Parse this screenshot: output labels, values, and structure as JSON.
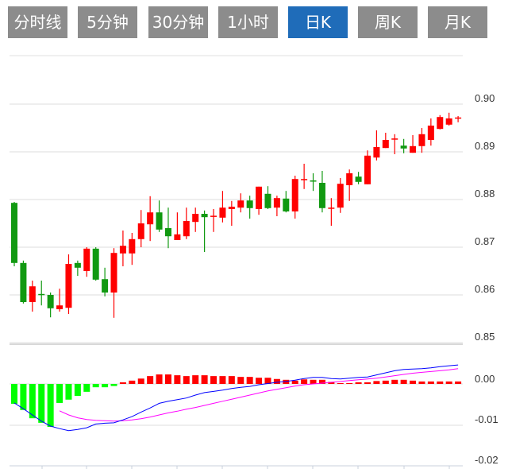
{
  "tabs": [
    {
      "label": "分时线",
      "active": false
    },
    {
      "label": "5分钟",
      "active": false
    },
    {
      "label": "30分钟",
      "active": false
    },
    {
      "label": "1小时",
      "active": false
    },
    {
      "label": "日K",
      "active": true
    },
    {
      "label": "周K",
      "active": false
    },
    {
      "label": "月K",
      "active": false
    }
  ],
  "colors": {
    "up": "#ff0000",
    "down": "#119911",
    "macd_neg": "#00ff00",
    "dif": "#0000ff",
    "dea": "#ff00ff",
    "active_tab": "#1f6cb9",
    "tab": "#8c8c8c"
  },
  "chart_data": [
    {
      "type": "candlestick",
      "ylim": [
        0.85,
        0.91
      ],
      "y_ticks": [
        "0.90",
        "0.89",
        "0.88",
        "0.87",
        "0.86",
        "0.85"
      ],
      "grid": true,
      "ohlc": [
        [
          0.8793,
          0.8795,
          0.866,
          0.8667
        ],
        [
          0.8667,
          0.8672,
          0.8582,
          0.8585
        ],
        [
          0.8585,
          0.863,
          0.8565,
          0.8618
        ],
        [
          0.8602,
          0.863,
          0.8578,
          0.86
        ],
        [
          0.86,
          0.8605,
          0.8553,
          0.8572
        ],
        [
          0.857,
          0.8613,
          0.8565,
          0.8578
        ],
        [
          0.8573,
          0.8685,
          0.856,
          0.8665
        ],
        [
          0.8667,
          0.8672,
          0.864,
          0.8657
        ],
        [
          0.865,
          0.87,
          0.8638,
          0.8697
        ],
        [
          0.8697,
          0.87,
          0.863,
          0.8632
        ],
        [
          0.8633,
          0.8657,
          0.8597,
          0.8605
        ],
        [
          0.8605,
          0.8698,
          0.8552,
          0.8688
        ],
        [
          0.8687,
          0.8735,
          0.866,
          0.8703
        ],
        [
          0.8687,
          0.873,
          0.8663,
          0.8717
        ],
        [
          0.8717,
          0.8778,
          0.87,
          0.875
        ],
        [
          0.8748,
          0.8807,
          0.8713,
          0.8773
        ],
        [
          0.8773,
          0.8798,
          0.8732,
          0.8737
        ],
        [
          0.874,
          0.8783,
          0.8698,
          0.8723
        ],
        [
          0.8715,
          0.8773,
          0.8715,
          0.8727
        ],
        [
          0.8723,
          0.8783,
          0.8717,
          0.8755
        ],
        [
          0.8753,
          0.8783,
          0.8732,
          0.877
        ],
        [
          0.877,
          0.8777,
          0.869,
          0.8763
        ],
        [
          0.8764,
          0.878,
          0.8732,
          0.8766
        ],
        [
          0.8762,
          0.8818,
          0.8752,
          0.8783
        ],
        [
          0.878,
          0.8797,
          0.8745,
          0.8785
        ],
        [
          0.8783,
          0.8813,
          0.8773,
          0.8798
        ],
        [
          0.8798,
          0.8808,
          0.876,
          0.8782
        ],
        [
          0.878,
          0.8827,
          0.8768,
          0.8827
        ],
        [
          0.8812,
          0.8828,
          0.878,
          0.8782
        ],
        [
          0.8783,
          0.8808,
          0.8765,
          0.8803
        ],
        [
          0.8802,
          0.8818,
          0.8773,
          0.8775
        ],
        [
          0.8775,
          0.885,
          0.876,
          0.8843
        ],
        [
          0.8842,
          0.8875,
          0.8822,
          0.8843
        ],
        [
          0.884,
          0.8855,
          0.8818,
          0.8838
        ],
        [
          0.8835,
          0.886,
          0.8773,
          0.8782
        ],
        [
          0.8782,
          0.8803,
          0.8745,
          0.8783
        ],
        [
          0.8783,
          0.8845,
          0.8772,
          0.8833
        ],
        [
          0.883,
          0.8863,
          0.8797,
          0.8855
        ],
        [
          0.8848,
          0.8858,
          0.8832,
          0.8837
        ],
        [
          0.8832,
          0.8903,
          0.8832,
          0.8892
        ],
        [
          0.8888,
          0.8945,
          0.8882,
          0.891
        ],
        [
          0.8908,
          0.894,
          0.8908,
          0.8925
        ],
        [
          0.8926,
          0.8937,
          0.8895,
          0.8928
        ],
        [
          0.8913,
          0.8927,
          0.8897,
          0.8907
        ],
        [
          0.8898,
          0.8935,
          0.8898,
          0.8912
        ],
        [
          0.8912,
          0.895,
          0.8898,
          0.8937
        ],
        [
          0.8925,
          0.897,
          0.8913,
          0.8955
        ],
        [
          0.8948,
          0.8977,
          0.8947,
          0.8973
        ],
        [
          0.8957,
          0.8982,
          0.8955,
          0.897
        ],
        [
          0.897,
          0.8975,
          0.8962,
          0.8972
        ]
      ]
    },
    {
      "type": "macd",
      "ylim": [
        -0.02,
        0.0
      ],
      "y_ticks": [
        "0.00",
        "-0.01",
        "-0.02"
      ],
      "histogram": [
        -0.0048,
        -0.0063,
        -0.0083,
        -0.0094,
        -0.0104,
        -0.0046,
        -0.0038,
        -0.0029,
        -0.0019,
        -0.0008,
        -0.0008,
        -0.0005,
        0.0004,
        0.0008,
        0.0013,
        0.0019,
        0.0023,
        0.0023,
        0.0021,
        0.0019,
        0.0021,
        0.0021,
        0.0019,
        0.0019,
        0.0019,
        0.0017,
        0.0017,
        0.0015,
        0.0015,
        0.0012,
        0.001,
        0.0008,
        0.0011,
        0.001,
        0.001,
        0.0005,
        0.0002,
        0.0002,
        0.0004,
        0.0004,
        0.0007,
        0.0008,
        0.001,
        0.001,
        0.0008,
        0.0006,
        0.0006,
        0.0006,
        0.0006,
        0.0006
      ],
      "dif": [
        -0.0046,
        -0.006,
        -0.0075,
        -0.009,
        -0.0102,
        -0.0108,
        -0.0113,
        -0.011,
        -0.0106,
        -0.0097,
        -0.0095,
        -0.0094,
        -0.0087,
        -0.0079,
        -0.0068,
        -0.0058,
        -0.0047,
        -0.0042,
        -0.0038,
        -0.0034,
        -0.0027,
        -0.0021,
        -0.0018,
        -0.0015,
        -0.0011,
        -0.0008,
        -0.0006,
        -0.0002,
        0.0001,
        0.0004,
        0.0006,
        0.0009,
        0.0013,
        0.0016,
        0.0016,
        0.0013,
        0.0012,
        0.0014,
        0.0016,
        0.0017,
        0.0022,
        0.0027,
        0.0032,
        0.0035,
        0.0036,
        0.0037,
        0.0039,
        0.0042,
        0.0044,
        0.0046
      ],
      "dea": [
        null,
        null,
        null,
        null,
        null,
        -0.0065,
        -0.0075,
        -0.0082,
        -0.0086,
        -0.0088,
        -0.0089,
        -0.009,
        -0.0089,
        -0.0087,
        -0.0084,
        -0.008,
        -0.0075,
        -0.007,
        -0.0066,
        -0.0061,
        -0.0057,
        -0.0052,
        -0.0047,
        -0.0042,
        -0.0037,
        -0.0032,
        -0.0027,
        -0.0022,
        -0.0017,
        -0.0013,
        -0.0009,
        -0.0005,
        -0.0002,
        0.0,
        0.0002,
        0.0004,
        0.0006,
        0.0008,
        0.001,
        0.0012,
        0.0014,
        0.0017,
        0.002,
        0.0023,
        0.0026,
        0.0028,
        0.003,
        0.0032,
        0.0034,
        0.0037
      ]
    }
  ]
}
